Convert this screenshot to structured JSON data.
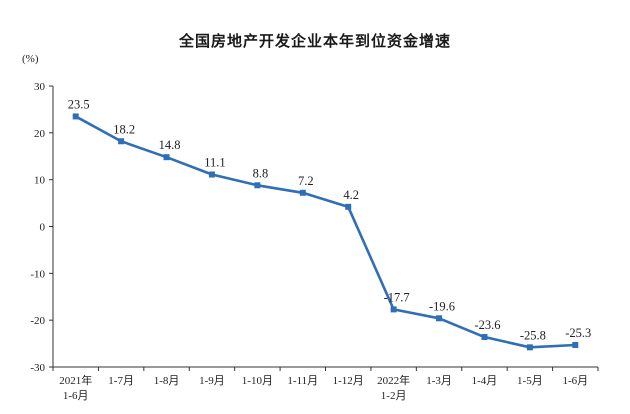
{
  "chart_data": {
    "type": "line",
    "title": "全国房地产开发企业本年到位资金增速",
    "ylabel": "(%)",
    "xlabel": "",
    "ylim": [
      -30,
      30
    ],
    "yticks": [
      30,
      20,
      10,
      0,
      -10,
      -20,
      -30
    ],
    "grid": false,
    "categories": [
      [
        "2021年",
        "1-6月"
      ],
      [
        "1-7月"
      ],
      [
        "1-8月"
      ],
      [
        "1-9月"
      ],
      [
        "1-10月"
      ],
      [
        "1-11月"
      ],
      [
        "1-12月"
      ],
      [
        "2022年",
        "1-2月"
      ],
      [
        "1-3月"
      ],
      [
        "1-4月"
      ],
      [
        "1-5月"
      ],
      [
        "1-6月"
      ]
    ],
    "series": [
      {
        "values": [
          23.5,
          18.2,
          14.8,
          11.1,
          8.8,
          7.2,
          4.2,
          -17.7,
          -19.6,
          -23.6,
          -25.8,
          -25.3
        ],
        "labels": [
          "23.5",
          "18.2",
          "14.8",
          "11.1",
          "8.8",
          "7.2",
          "4.2",
          "-17.7",
          "-19.6",
          "-23.6",
          "-25.8",
          "-25.3"
        ],
        "color": "#2e6fb7"
      }
    ]
  }
}
